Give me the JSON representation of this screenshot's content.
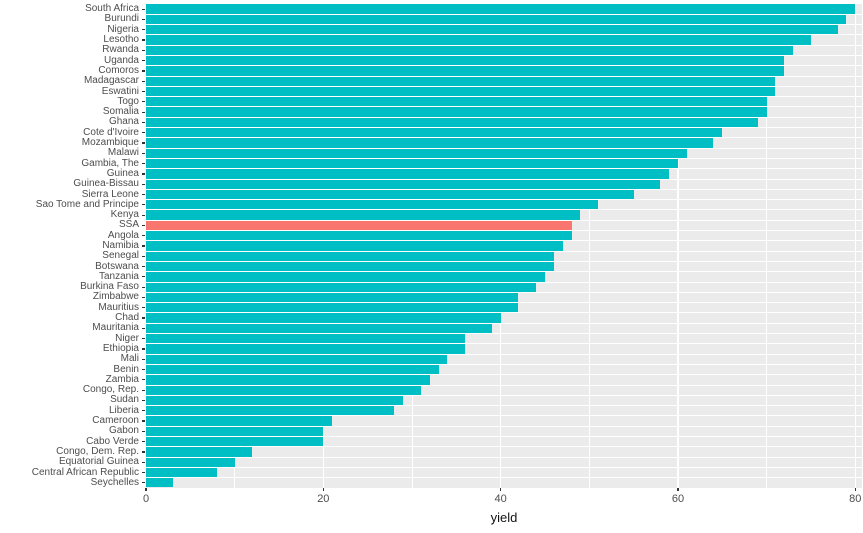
{
  "chart_data": {
    "type": "bar",
    "orientation": "horizontal",
    "title": "",
    "xlabel": "yield",
    "ylabel": "",
    "xlim": [
      0,
      80.8
    ],
    "x_ticks": [
      0,
      20,
      40,
      60,
      80
    ],
    "grid": "on",
    "legend": "none",
    "highlight_category": "SSA",
    "highlight_index": 21,
    "colors": {
      "bar": "#00BFC4",
      "highlight": "#F8766D",
      "panel_background": "#EBEBEB",
      "gridline": "#FFFFFF",
      "axis_text": "#4D4D4D",
      "tick_mark": "#333333",
      "axis_title": "#111111"
    },
    "categories": [
      "South Africa",
      "Burundi",
      "Nigeria",
      "Lesotho",
      "Rwanda",
      "Uganda",
      "Comoros",
      "Madagascar",
      "Eswatini",
      "Togo",
      "Somalia",
      "Ghana",
      "Cote d'Ivoire",
      "Mozambique",
      "Malawi",
      "Gambia, The",
      "Guinea",
      "Guinea-Bissau",
      "Sierra Leone",
      "Sao Tome and Principe",
      "Kenya",
      "SSA",
      "Angola",
      "Namibia",
      "Senegal",
      "Botswana",
      "Tanzania",
      "Burkina Faso",
      "Zimbabwe",
      "Mauritius",
      "Chad",
      "Mauritania",
      "Niger",
      "Ethiopia",
      "Mali",
      "Benin",
      "Zambia",
      "Congo, Rep.",
      "Sudan",
      "Liberia",
      "Cameroon",
      "Gabon",
      "Cabo Verde",
      "Congo, Dem. Rep.",
      "Equatorial Guinea",
      "Central African Republic",
      "Seychelles"
    ],
    "values": [
      80,
      79,
      78,
      75,
      73,
      72,
      72,
      71,
      71,
      70,
      70,
      69,
      65,
      64,
      61,
      60,
      59,
      58,
      55,
      51,
      49,
      48,
      48,
      47,
      46,
      46,
      45,
      44,
      42,
      42,
      40,
      39,
      36,
      36,
      34,
      33,
      32,
      31,
      29,
      28,
      21,
      20,
      20,
      12,
      10,
      8,
      3
    ]
  }
}
